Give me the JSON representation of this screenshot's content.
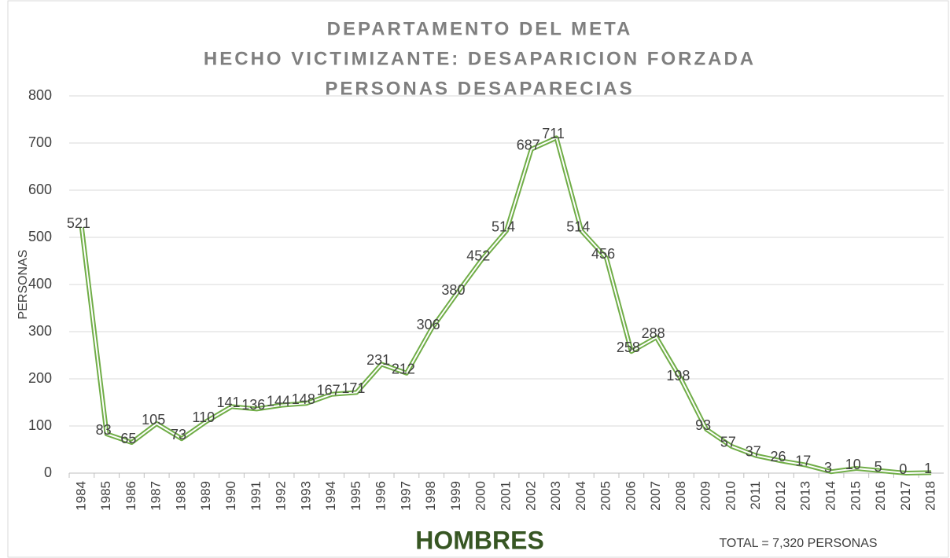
{
  "chart_data": {
    "type": "line",
    "title": [
      "DEPARTAMENTO DEL META",
      "HECHO VICTIMIZANTE: DESAPARICION FORZADA",
      "PERSONAS DESAPARECIAS"
    ],
    "y_label": "PERSONAS",
    "annotations": [
      "HOMBRES",
      "TOTAL = 7,320 PERSONAS"
    ],
    "categories": [
      "1984",
      "1985",
      "1986",
      "1987",
      "1988",
      "1989",
      "1990",
      "1991",
      "1992",
      "1993",
      "1994",
      "1995",
      "1996",
      "1997",
      "1998",
      "1999",
      "2000",
      "2001",
      "2002",
      "2003",
      "2004",
      "2005",
      "2006",
      "2007",
      "2008",
      "2009",
      "2010",
      "2011",
      "2012",
      "2013",
      "2014",
      "2015",
      "2016",
      "2017",
      "2018"
    ],
    "series": [
      {
        "name": "HOMBRES",
        "color": "#70ad47",
        "values": [
          521,
          83,
          65,
          105,
          73,
          110,
          141,
          136,
          144,
          148,
          167,
          171,
          231,
          212,
          306,
          380,
          452,
          514,
          687,
          711,
          514,
          456,
          258,
          288,
          198,
          93,
          57,
          37,
          26,
          17,
          3,
          10,
          5,
          0,
          1
        ]
      }
    ],
    "ylim": [
      0,
      800
    ],
    "yticks": [
      0,
      100,
      200,
      300,
      400,
      500,
      600,
      700,
      800
    ],
    "grid": true
  }
}
